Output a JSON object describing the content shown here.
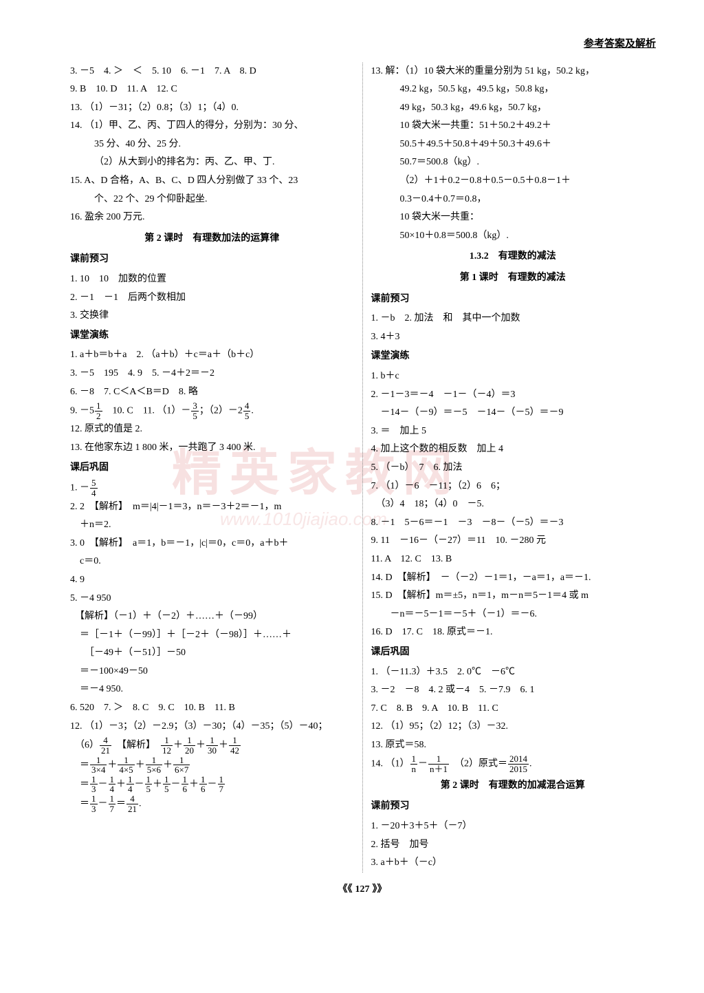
{
  "header": "参考答案及解析",
  "watermark_main": "精英家教网",
  "watermark_url": "www.1010jiajiao.com",
  "page_number": "127",
  "left": {
    "lines": [
      "3. －5　4. ＞　＜　5. 10　6. －1　7. A　8. D",
      "9. B　10. D　11. A　12. C",
      "13. （1）－31；（2）0.8；（3）1；（4）0.",
      "14. （1）甲、乙、丙、丁四人的得分，分别为：30 分、"
    ],
    "indent1": [
      "35 分、40 分、25 分.",
      "（2）从大到小的排名为：丙、乙、甲、丁."
    ],
    "lines2": [
      "15. A、D 合格，A、B、C、D 四人分别做了 33 个、23"
    ],
    "indent2": [
      "个、22 个、29 个仰卧起坐."
    ],
    "lines3": [
      "16. 盈余 200 万元."
    ],
    "title1": "第 2 课时　有理数加法的运算律",
    "sub1": "课前预习",
    "pre1": [
      "1. 10　10　加数的位置",
      "2. －1　－1　后两个数相加",
      "3. 交换律"
    ],
    "sub2": "课堂演练",
    "class1": [
      "1. a＋b＝b＋a　2. （a＋b）＋c＝a＋（b＋c）",
      "3. －5　195　4. 9　5. －4＋2＝－2",
      "6. －8　7. C＜A＜B＝D　8. 略"
    ],
    "q9_pre": "9. －5",
    "q9_f1n": "1",
    "q9_f1d": "2",
    "q9_mid": "　10. C　11. （1）－",
    "q9_f2n": "3",
    "q9_f2d": "5",
    "q9_mid2": "；（2）－2",
    "q9_f3n": "4",
    "q9_f3d": "5",
    "q9_end": ".",
    "class2": [
      "12. 原式的值是 2.",
      "13. 在他家东边 1 800 米，一共跑了 3 400 米."
    ],
    "sub3": "课后巩固",
    "hw1_pre": "1. －",
    "hw1_fn": "5",
    "hw1_fd": "4",
    "hw2": [
      "2. 2　【解析】　m＝|4|－1＝3，n＝－3＋2＝－1，m",
      "　＋n＝2.",
      "3. 0　【解析】　a＝1，b＝－1，|c|＝0，c＝0，a＋b＋",
      "　c＝0.",
      "4. 9",
      "5. －4 950",
      "　【解析】（－1）＋（－2）＋……＋（－99）",
      "　＝［－1＋（－99）］＋［－2＋（－98）］＋……＋",
      "　　［－49＋（－51）］－50",
      "　＝－100×49－50",
      "　＝－4 950.",
      "6. 520　7. ＞　8. C　9. C　10. B　11. B",
      "12. （1）－3；（2）－2.9；（3）－30；（4）－35；（5）－40；"
    ],
    "q12_6_pre": "　（6）",
    "q12_6_f1n": "4",
    "q12_6_f1d": "21",
    "q12_6_mid": "　【解析】　",
    "q12_6_f2n": "1",
    "q12_6_f2d": "12",
    "q12_6_plus1": "＋",
    "q12_6_f3n": "1",
    "q12_6_f3d": "20",
    "q12_6_f4n": "1",
    "q12_6_f4d": "30",
    "q12_6_f5n": "1",
    "q12_6_f5d": "42",
    "q12_l2_pre": "　＝",
    "q12_l2_f1n": "1",
    "q12_l2_f1d": "3×4",
    "q12_l2_f2n": "1",
    "q12_l2_f2d": "4×5",
    "q12_l2_f3n": "1",
    "q12_l2_f3d": "5×6",
    "q12_l2_f4n": "1",
    "q12_l2_f4d": "6×7",
    "q12_l3_pre": "　＝",
    "q12_l3_f1n": "1",
    "q12_l3_f1d": "3",
    "q12_l3_f2n": "1",
    "q12_l3_f2d": "4",
    "q12_l3_f3n": "1",
    "q12_l3_f3d": "4",
    "q12_l3_f4n": "1",
    "q12_l3_f4d": "5",
    "q12_l3_f5n": "1",
    "q12_l3_f5d": "5",
    "q12_l3_f6n": "1",
    "q12_l3_f6d": "6",
    "q12_l3_f7n": "1",
    "q12_l3_f7d": "6",
    "q12_l3_f8n": "1",
    "q12_l3_f8d": "7",
    "q12_l4_pre": "　＝",
    "q12_l4_f1n": "1",
    "q12_l4_f1d": "3",
    "q12_l4_f2n": "1",
    "q12_l4_f2d": "7",
    "q12_l4_eq": "＝",
    "q12_l4_f3n": "4",
    "q12_l4_f3d": "21",
    "q12_l4_end": "."
  },
  "right": {
    "r13": [
      "13. 解：（1）10 袋大米的重量分别为 51 kg，50.2 kg，",
      "49.2 kg，50.5 kg，49.5 kg，50.8 kg，",
      "49 kg，50.3 kg，49.6 kg，50.7 kg，",
      "10 袋大米一共重：51＋50.2＋49.2＋",
      "50.5＋49.5＋50.8＋49＋50.3＋49.6＋",
      "50.7＝500.8（kg）.",
      "（2）＋1＋0.2－0.8＋0.5－0.5＋0.8－1＋",
      "0.3－0.4＋0.7＝0.8，",
      "10 袋大米一共重：",
      "50×10＋0.8＝500.8（kg）."
    ],
    "title1": "1.3.2　有理数的减法",
    "title2": "第 1 课时　有理数的减法",
    "sub1": "课前预习",
    "pre1": [
      "1. －b　2. 加法　和　其中一个加数",
      "3. 4＋3"
    ],
    "sub2": "课堂演练",
    "class1": [
      "1. b＋c",
      "2. －1－3＝－4　－1－（－4）＝3",
      "　－14－（－9）＝－5　－14－（－5）＝－9",
      "3. ＝　加上 5",
      "4. 加上这个数的相反数　加上 4",
      "5. （－b）　7　6. 加法",
      "7. （1）－6　－11；（2）6　6；",
      "　（3）4　18；（4）0　－5.",
      "8. －1　5－6＝－1　－3　－8－（－5）＝－3",
      "9. 11　－16－（－27）＝11　10. －280 元",
      "11. A　12. C　13. B",
      "14. D　【解析】　－（－2）－1＝1，－a＝1，a＝－1.",
      "15. D　【解析】m＝±5，n＝1，m－n＝5－1＝4 或 m",
      "　　－n＝－5－1＝－5＋（－1）＝－6.",
      "16. D　17. C　18. 原式＝－1."
    ],
    "sub3": "课后巩固",
    "hw1": [
      "1. （－11.3）＋3.5　2. 0℃　－6℃",
      "3. －2　－8　4. 2 或－4　5. －7.9　6. 1",
      "7. C　8. B　9. A　10. B　11. C",
      "12. （1）95；（2）12；（3）－32.",
      "13. 原式＝58."
    ],
    "q14_pre": "14. （1）",
    "q14_f1n": "1",
    "q14_f1d": "n",
    "q14_mid1": "－",
    "q14_f2n": "1",
    "q14_f2d": "n＋1",
    "q14_mid2": "　（2）原式＝",
    "q14_f3n": "2014",
    "q14_f3d": "2015",
    "q14_end": ".",
    "title3": "第 2 课时　有理数的加减混合运算",
    "sub4": "课前预习",
    "pre2": [
      "1. －20＋3＋5＋（－7）",
      "2. 括号　加号",
      "3. a＋b＋（－c）"
    ]
  }
}
